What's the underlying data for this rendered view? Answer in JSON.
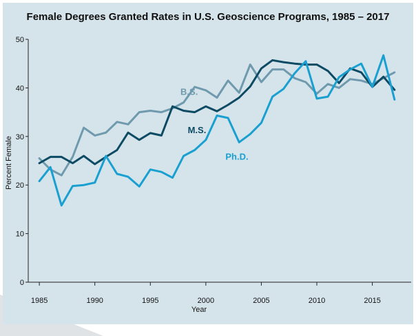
{
  "chart_data": {
    "type": "line",
    "title": "Female Degrees Granted Rates in U.S. Geoscience Programs, 1985 – 2017",
    "xlabel": "Year",
    "ylabel": "Percent Female",
    "xlim": [
      1984,
      2018.5
    ],
    "ylim": [
      0,
      50
    ],
    "xticks": [
      1985,
      1990,
      1995,
      2000,
      2005,
      2010,
      2015
    ],
    "yticks": [
      0,
      10,
      20,
      30,
      40,
      50
    ],
    "grid": false,
    "x": [
      1985,
      1986,
      1987,
      1988,
      1989,
      1990,
      1991,
      1992,
      1993,
      1994,
      1995,
      1996,
      1997,
      1998,
      1999,
      2000,
      2001,
      2002,
      2003,
      2004,
      2005,
      2006,
      2007,
      2008,
      2009,
      2010,
      2011,
      2012,
      2013,
      2014,
      2015,
      2016,
      2017
    ],
    "series": [
      {
        "name": "B.S.",
        "color": "#6f9aae",
        "values": [
          25.5,
          23.2,
          22.0,
          25.8,
          31.8,
          30.2,
          30.8,
          33.0,
          32.5,
          35.0,
          35.3,
          35.0,
          35.8,
          37.0,
          40.2,
          39.5,
          38.0,
          41.5,
          39.0,
          44.8,
          41.2,
          43.8,
          43.8,
          42.0,
          41.2,
          38.8,
          40.8,
          40.0,
          41.8,
          41.5,
          40.8,
          42.0,
          43.2
        ]
      },
      {
        "name": "M.S.",
        "color": "#0d4a63",
        "values": [
          24.5,
          25.8,
          25.8,
          24.5,
          26.0,
          24.3,
          25.8,
          27.2,
          30.8,
          29.3,
          30.7,
          30.2,
          36.2,
          35.3,
          35.0,
          36.2,
          35.2,
          36.5,
          38.0,
          40.3,
          44.0,
          45.7,
          45.3,
          45.0,
          44.8,
          44.8,
          43.5,
          41.0,
          44.0,
          43.2,
          40.2,
          42.3,
          39.6
        ]
      },
      {
        "name": "Ph.D.",
        "color": "#1aa0d0",
        "values": [
          20.8,
          23.7,
          15.8,
          19.8,
          20.0,
          20.5,
          26.0,
          22.3,
          21.7,
          19.7,
          23.2,
          22.7,
          21.5,
          26.0,
          27.2,
          29.3,
          34.3,
          33.8,
          28.8,
          30.5,
          32.8,
          38.2,
          39.8,
          43.0,
          45.5,
          37.8,
          38.2,
          42.2,
          43.8,
          45.0,
          40.2,
          46.7,
          37.6
        ]
      }
    ]
  }
}
